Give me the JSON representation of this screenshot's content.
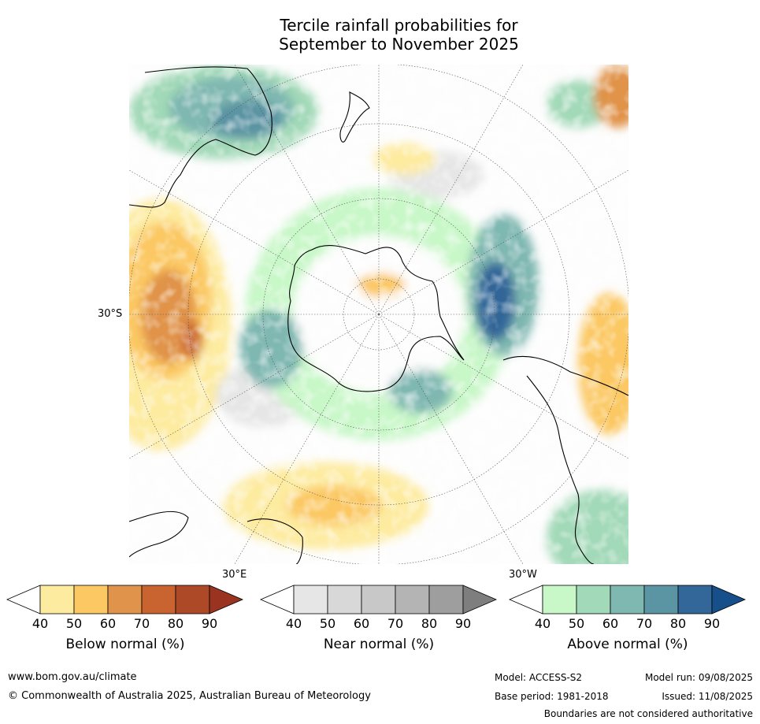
{
  "title": {
    "line1": "Tercile rainfall probabilities for",
    "line2": "September to November 2025"
  },
  "map": {
    "projection": "south-polar-stereographic",
    "lat_label": "30°S",
    "lon_labels": {
      "east": "30°E",
      "west": "30°W"
    },
    "colors": {
      "below": [
        "#fdeba0",
        "#fbc864",
        "#e0934a",
        "#c9632f",
        "#ae4928",
        "#9a3420"
      ],
      "near": [
        "#e6e6e6",
        "#d8d8d8",
        "#c8c8c8",
        "#b4b4b4",
        "#9e9e9e",
        "#7e7e7e"
      ],
      "above": [
        "#c8f7c8",
        "#a2d9b8",
        "#7fb7b1",
        "#5b94a3",
        "#336699",
        "#164f8a"
      ]
    }
  },
  "colorbars": [
    {
      "label": "Below normal (%)",
      "ticks": [
        "40",
        "50",
        "60",
        "70",
        "80",
        "90"
      ]
    },
    {
      "label": "Near normal (%)",
      "ticks": [
        "40",
        "50",
        "60",
        "70",
        "80",
        "90"
      ]
    },
    {
      "label": "Above normal (%)",
      "ticks": [
        "40",
        "50",
        "60",
        "70",
        "80",
        "90"
      ]
    }
  ],
  "footer": {
    "website": "www.bom.gov.au/climate",
    "copyright": "© Commonwealth of Australia 2025, Australian Bureau of Meteorology",
    "model": "Model: ACCESS-S2",
    "model_run": "Model run: 09/08/2025",
    "base_period": "Base period: 1981-2018",
    "issued": "Issued: 11/08/2025",
    "disclaimer": "Boundaries are not considered authoritative"
  }
}
